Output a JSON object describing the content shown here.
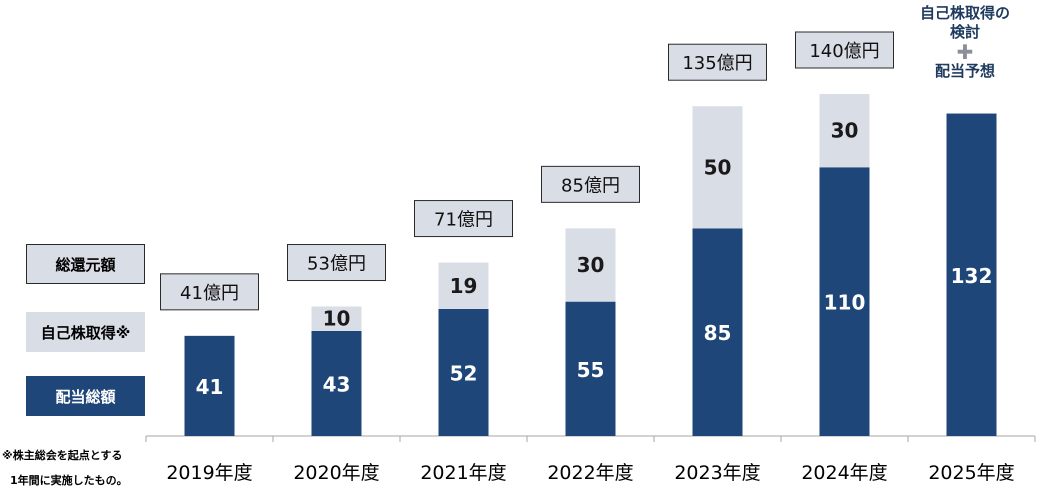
{
  "legend": {
    "total": "総還元額",
    "buyback": "自己株取得※",
    "dividend": "配当総額"
  },
  "footnote": {
    "line1": "※株主総会を起点とする",
    "line2": "1年間に実施したもの。"
  },
  "future_note": {
    "line1": "自己株取得の",
    "line2": "検討",
    "plus": "✚",
    "line3": "配当予想"
  },
  "colors": {
    "dividend": "#1f4678",
    "buyback": "#d9dde6",
    "total_box": "#d9dde6",
    "axis": "#a6a6a6"
  },
  "chart_data": {
    "type": "bar",
    "stacked": true,
    "categories": [
      "2019年度",
      "2020年度",
      "2021年度",
      "2022年度",
      "2023年度",
      "2024年度",
      "2025年度"
    ],
    "series": [
      {
        "name": "配当総額",
        "values": [
          41,
          43,
          52,
          55,
          85,
          110,
          132
        ]
      },
      {
        "name": "自己株取得※",
        "values": [
          0,
          10,
          19,
          30,
          50,
          30,
          null
        ]
      }
    ],
    "totals": [
      {
        "value": 41,
        "label": "41億円"
      },
      {
        "value": 53,
        "label": "53億円"
      },
      {
        "value": 71,
        "label": "71億円"
      },
      {
        "value": 85,
        "label": "85億円"
      },
      {
        "value": 135,
        "label": "135億円"
      },
      {
        "value": 140,
        "label": "140億円"
      },
      {
        "value": null,
        "label": ""
      }
    ],
    "ylim": [
      0,
      140
    ],
    "grid": false,
    "legend_position": "left"
  }
}
